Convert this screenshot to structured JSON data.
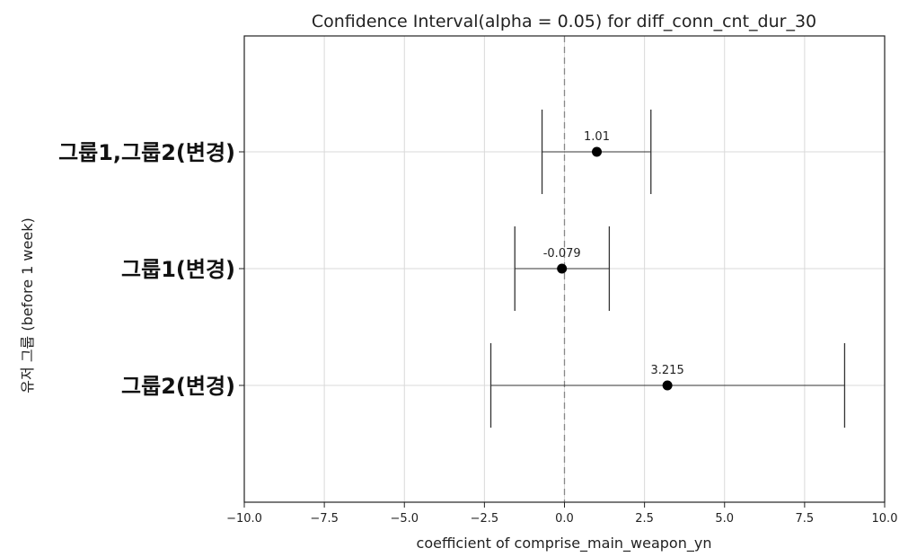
{
  "chart_data": {
    "type": "errorbar",
    "title": "Confidence Interval(alpha = 0.05) for diff_conn_cnt_dur_30",
    "xlabel": "coefficient of comprise_main_weapon_yn",
    "ylabel": "유저 그룹 (before 1 week)",
    "xlim": [
      -10.0,
      10.0
    ],
    "xticks": [
      -10.0,
      -7.5,
      -5.0,
      -2.5,
      0.0,
      2.5,
      5.0,
      7.5,
      10.0
    ],
    "xtick_labels": [
      "−10.0",
      "−7.5",
      "−5.0",
      "−2.5",
      "0.0",
      "2.5",
      "5.0",
      "7.5",
      "10.0"
    ],
    "grid": true,
    "reference_line_x": 0,
    "categories": [
      "그룹1,그룹2(변경)",
      "그룹1(변경)",
      "그룹2(변경)"
    ],
    "estimates": [
      1.01,
      -0.079,
      3.215
    ],
    "estimate_labels": [
      "1.01",
      "-0.079",
      "3.215"
    ],
    "ci_lower": [
      -0.7,
      -1.55,
      -2.3
    ],
    "ci_upper": [
      2.7,
      1.4,
      8.75
    ],
    "colors": {
      "marker": "#000000",
      "errorbar": "#333333",
      "grid": "#d9d9d9",
      "zero_line": "#888888"
    }
  }
}
